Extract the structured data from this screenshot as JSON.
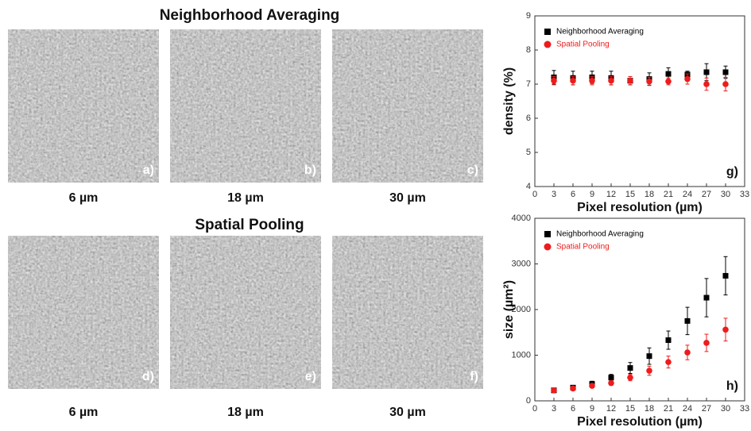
{
  "figure": {
    "rows": [
      {
        "title": "Neighborhood Averaging",
        "panels": [
          {
            "label": "a)",
            "resolution": "6 µm"
          },
          {
            "label": "b)",
            "resolution": "18 µm"
          },
          {
            "label": "c)",
            "resolution": "30 µm"
          }
        ]
      },
      {
        "title": "Spatial Pooling",
        "panels": [
          {
            "label": "d)",
            "resolution": "6 µm"
          },
          {
            "label": "e)",
            "resolution": "18 µm"
          },
          {
            "label": "f)",
            "resolution": "30 µm"
          }
        ]
      }
    ]
  },
  "chart_data": [
    {
      "type": "scatter",
      "annotation": "g)",
      "xlabel": "Pixel resolution (µm)",
      "ylabel": "density (%)",
      "x": [
        3,
        6,
        9,
        12,
        15,
        18,
        21,
        24,
        27,
        30
      ],
      "xlim": [
        0,
        33
      ],
      "xticks": [
        0,
        3,
        6,
        9,
        12,
        15,
        18,
        21,
        24,
        27,
        30,
        33
      ],
      "ylim": [
        4,
        9
      ],
      "yticks": [
        4,
        5,
        6,
        7,
        8,
        9
      ],
      "series": [
        {
          "name": "Neighborhood Averaging",
          "color": "#000000",
          "marker": "square",
          "values": [
            7.2,
            7.18,
            7.2,
            7.18,
            7.1,
            7.15,
            7.3,
            7.28,
            7.35,
            7.35
          ],
          "errors": [
            0.2,
            0.2,
            0.18,
            0.2,
            0.12,
            0.18,
            0.18,
            0.1,
            0.25,
            0.18
          ]
        },
        {
          "name": "Spatial Pooling",
          "color": "#ee1c1c",
          "marker": "circle",
          "values": [
            7.1,
            7.1,
            7.1,
            7.1,
            7.1,
            7.08,
            7.08,
            7.15,
            7.0,
            7.0
          ],
          "errors": [
            0.12,
            0.12,
            0.12,
            0.12,
            0.12,
            0.12,
            0.1,
            0.15,
            0.18,
            0.2
          ]
        }
      ]
    },
    {
      "type": "scatter",
      "annotation": "h)",
      "xlabel": "Pixel resolution (µm)",
      "ylabel": "size (µm²)",
      "x": [
        3,
        6,
        9,
        12,
        15,
        18,
        21,
        24,
        27,
        30
      ],
      "xlim": [
        0,
        33
      ],
      "xticks": [
        0,
        3,
        6,
        9,
        12,
        15,
        18,
        21,
        24,
        27,
        30,
        33
      ],
      "ylim": [
        0,
        4000
      ],
      "yticks": [
        0,
        1000,
        2000,
        3000,
        4000
      ],
      "series": [
        {
          "name": "Neighborhood Averaging",
          "color": "#000000",
          "marker": "square",
          "values": [
            230,
            290,
            370,
            510,
            720,
            980,
            1330,
            1750,
            2260,
            2740
          ],
          "errors": [
            20,
            40,
            60,
            70,
            120,
            180,
            200,
            300,
            420,
            420
          ]
        },
        {
          "name": "Spatial Pooling",
          "color": "#ee1c1c",
          "marker": "circle",
          "values": [
            230,
            270,
            330,
            390,
            510,
            660,
            850,
            1060,
            1270,
            1560
          ],
          "errors": [
            20,
            30,
            40,
            50,
            70,
            100,
            130,
            160,
            190,
            250
          ]
        }
      ]
    }
  ]
}
